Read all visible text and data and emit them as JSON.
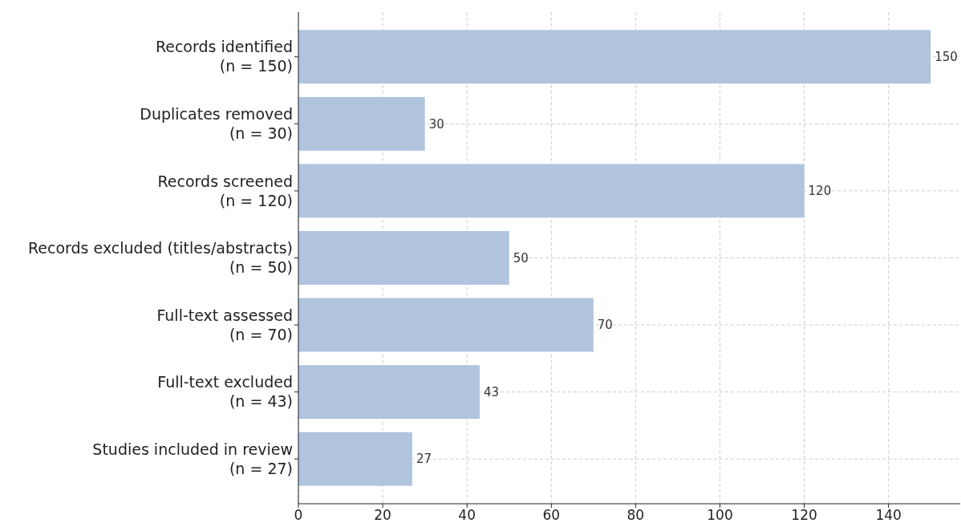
{
  "chart_data": {
    "type": "bar",
    "orientation": "horizontal",
    "categories": [
      "Records identified\n(n = 150)",
      "Duplicates removed\n(n = 30)",
      "Records screened\n(n = 120)",
      "Records excluded (titles/abstracts)\n(n = 50)",
      "Full-text assessed\n(n = 70)",
      "Full-text excluded\n(n = 43)",
      "Studies included in review\n(n = 27)"
    ],
    "values": [
      150,
      30,
      120,
      50,
      70,
      43,
      27
    ],
    "color": "#b0c4de",
    "xlim": [
      0,
      157
    ],
    "xticks": [
      0,
      20,
      40,
      60,
      80,
      100,
      120,
      140
    ],
    "grid": true,
    "data_labels": true
  }
}
